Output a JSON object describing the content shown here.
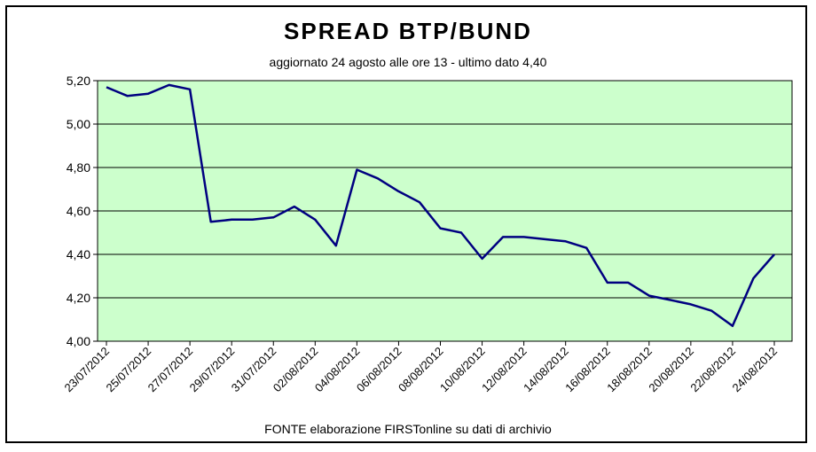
{
  "chart_data": {
    "type": "line",
    "title": "SPREAD  BTP/BUND",
    "subtitle": "aggiornato 24 agosto alle ore 13  -  ultimo dato 4,40",
    "source": "FONTE elaborazione FIRSTonline su dati di archivio",
    "ylim": [
      4.0,
      5.2
    ],
    "yticks": [
      "4,00",
      "4,20",
      "4,40",
      "4,60",
      "4,80",
      "5,00",
      "5,20"
    ],
    "xticks": [
      "23/07/2012",
      "25/07/2012",
      "27/07/2012",
      "29/07/2012",
      "31/07/2012",
      "02/08/2012",
      "04/08/2012",
      "06/08/2012",
      "08/08/2012",
      "10/08/2012",
      "12/08/2012",
      "14/08/2012",
      "16/08/2012",
      "18/08/2012",
      "20/08/2012",
      "22/08/2012",
      "24/08/2012"
    ],
    "grid": true,
    "colors": {
      "plot_bg": "#ccffcc",
      "line": "#000080",
      "grid": "#000000"
    },
    "series": [
      {
        "x": [
          "23/07/2012",
          "24/07/2012",
          "25/07/2012",
          "26/07/2012",
          "27/07/2012",
          "28/07/2012",
          "29/07/2012",
          "30/07/2012",
          "31/07/2012",
          "01/08/2012",
          "02/08/2012",
          "03/08/2012",
          "04/08/2012",
          "05/08/2012",
          "06/08/2012",
          "07/08/2012",
          "08/08/2012",
          "09/08/2012",
          "10/08/2012",
          "11/08/2012",
          "12/08/2012",
          "13/08/2012",
          "14/08/2012",
          "15/08/2012",
          "16/08/2012",
          "17/08/2012",
          "18/08/2012",
          "19/08/2012",
          "20/08/2012",
          "21/08/2012",
          "22/08/2012",
          "23/08/2012",
          "24/08/2012"
        ],
        "values": [
          5.17,
          5.13,
          5.14,
          5.18,
          5.16,
          4.55,
          4.56,
          4.56,
          4.57,
          4.62,
          4.56,
          4.44,
          4.79,
          4.75,
          4.69,
          4.64,
          4.52,
          4.5,
          4.38,
          4.48,
          4.48,
          4.47,
          4.46,
          4.43,
          4.27,
          4.27,
          4.21,
          4.19,
          4.17,
          4.14,
          4.07,
          4.29,
          4.4
        ]
      }
    ]
  }
}
